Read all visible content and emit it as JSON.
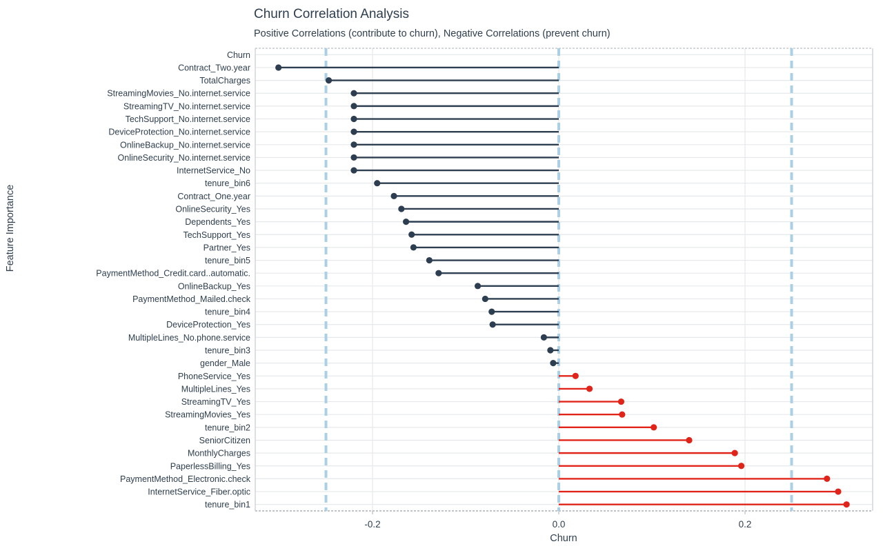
{
  "chart_data": {
    "type": "lollipop",
    "title": "Churn Correlation Analysis",
    "subtitle": "Positive Correlations (contribute to churn), Negative Correlations (prevent churn)",
    "xlabel": "Churn",
    "ylabel": "Feature Importance",
    "xlim": [
      -0.326,
      0.337
    ],
    "x_ticks": [
      -0.2,
      0.0,
      0.2
    ],
    "x_tick_labels": [
      "-0.2",
      "0.0",
      "0.2"
    ],
    "threshold_lines": [
      -0.25,
      0,
      0.25
    ],
    "grid": true,
    "legend": "none",
    "colors": {
      "negative": "#2d3e50",
      "positive": "#e02419",
      "threshold": "#abd0e6",
      "grid": "#e5e8ea",
      "border_solid": "#cdd3d8",
      "border_dashed": "#a9b1b7",
      "tick_mark": "#b5bcc2",
      "text": "#2e3e4e"
    },
    "features": [
      {
        "label": "Churn",
        "value": null
      },
      {
        "label": "Contract_Two.year",
        "value": -0.301
      },
      {
        "label": "TotalCharges",
        "value": -0.247
      },
      {
        "label": "StreamingMovies_No.internet.service",
        "value": -0.22
      },
      {
        "label": "StreamingTV_No.internet.service",
        "value": -0.22
      },
      {
        "label": "TechSupport_No.internet.service",
        "value": -0.22
      },
      {
        "label": "DeviceProtection_No.internet.service",
        "value": -0.22
      },
      {
        "label": "OnlineBackup_No.internet.service",
        "value": -0.22
      },
      {
        "label": "OnlineSecurity_No.internet.service",
        "value": -0.22
      },
      {
        "label": "InternetService_No",
        "value": -0.22
      },
      {
        "label": "tenure_bin6",
        "value": -0.195
      },
      {
        "label": "Contract_One.year",
        "value": -0.177
      },
      {
        "label": "OnlineSecurity_Yes",
        "value": -0.169
      },
      {
        "label": "Dependents_Yes",
        "value": -0.164
      },
      {
        "label": "TechSupport_Yes",
        "value": -0.158
      },
      {
        "label": "Partner_Yes",
        "value": -0.156
      },
      {
        "label": "tenure_bin5",
        "value": -0.139
      },
      {
        "label": "PaymentMethod_Credit.card..automatic.",
        "value": -0.129
      },
      {
        "label": "OnlineBackup_Yes",
        "value": -0.087
      },
      {
        "label": "PaymentMethod_Mailed.check",
        "value": -0.079
      },
      {
        "label": "tenure_bin4",
        "value": -0.072
      },
      {
        "label": "DeviceProtection_Yes",
        "value": -0.071
      },
      {
        "label": "MultipleLines_No.phone.service",
        "value": -0.016
      },
      {
        "label": "tenure_bin3",
        "value": -0.009
      },
      {
        "label": "gender_Male",
        "value": -0.006
      },
      {
        "label": "PhoneService_Yes",
        "value": 0.018
      },
      {
        "label": "MultipleLines_Yes",
        "value": 0.033
      },
      {
        "label": "StreamingTV_Yes",
        "value": 0.067
      },
      {
        "label": "StreamingMovies_Yes",
        "value": 0.068
      },
      {
        "label": "tenure_bin2",
        "value": 0.102
      },
      {
        "label": "SeniorCitizen",
        "value": 0.14
      },
      {
        "label": "MonthlyCharges",
        "value": 0.189
      },
      {
        "label": "PaperlessBilling_Yes",
        "value": 0.196
      },
      {
        "label": "PaymentMethod_Electronic.check",
        "value": 0.288
      },
      {
        "label": "InternetService_Fiber.optic",
        "value": 0.3
      },
      {
        "label": "tenure_bin1",
        "value": 0.309
      }
    ]
  }
}
